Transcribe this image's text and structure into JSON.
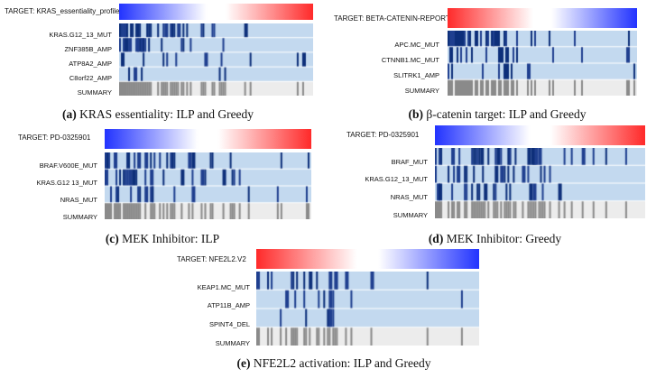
{
  "colors": {
    "blue_strong": "#1f3f8f",
    "blue_dark": "#0d2f7a",
    "blue_light": "#c3d9ef",
    "gray_dark": "#8a8a8a",
    "gray_light": "#ececec",
    "red": "#ff2a2a",
    "blue_grad": "#2233ff"
  },
  "panels": [
    {
      "id": "a",
      "target_prefix": "TARGET:",
      "target_name": "KRAS_essentiality_profile",
      "gradient": "blue-to-red",
      "rows": [
        "KRAS.G12_13_MUT",
        "ZNF385B_AMP",
        "ATP8A2_AMP",
        "C8orf22_AMP"
      ],
      "row_labels": [
        "KRAS.G12_13_MUT",
        "ZNF385B_AMP",
        "ATP8A2_AMP",
        "C8orf22_AMP"
      ],
      "summary_label": "SUMMARY",
      "caption_tag": "(a)",
      "caption_text": "KRAS essentiality: ILP and Greedy",
      "density": [
        0.45,
        0.22,
        0.18,
        0.12
      ],
      "active_fraction": 0.55,
      "seed": 11
    },
    {
      "id": "b",
      "target_prefix": "TARGET:",
      "target_name": "BETA-CATENIN-REPORTER",
      "gradient": "red-to-blue",
      "rows": [
        "APC.MC_MUT",
        "CTNNB1.MC_MUT",
        "SLITRK1_AMP"
      ],
      "row_labels": [
        "APC.MC_MUT",
        "CTNNB1.MC_MUT",
        "SLITRK1_AMP"
      ],
      "summary_label": "SUMMARY",
      "caption_tag": "(b)",
      "caption_text": "β-catenin target: ILP and Greedy",
      "density": [
        0.5,
        0.2,
        0.15
      ],
      "active_fraction": 0.45,
      "seed": 23
    },
    {
      "id": "c",
      "target_prefix": "TARGET:",
      "target_name": "PD-0325901",
      "gradient": "blue-to-red",
      "rows": [
        "BRAF.V600E_MUT",
        "KRAS.G12_13_MUT",
        "NRAS_MUT"
      ],
      "row_labels": [
        "BRAF.V600E_MUT",
        "KRAS.G12  13_MUT",
        "NRAS_MUT"
      ],
      "summary_label": "SUMMARY",
      "caption_tag": "(c)",
      "caption_text": "MEK Inhibitor: ILP",
      "density": [
        0.35,
        0.3,
        0.25
      ],
      "active_fraction": 0.7,
      "seed": 37
    },
    {
      "id": "d",
      "target_prefix": "TARGET:",
      "target_name": "PD-0325901",
      "gradient": "blue-to-red",
      "rows": [
        "BRAF_MUT",
        "KRAS.G12_13_MUT",
        "NRAS_MUT"
      ],
      "row_labels": [
        "BRAF_MUT",
        "KRAS.G12_13_MUT",
        "NRAS_MUT"
      ],
      "summary_label": "SUMMARY",
      "caption_tag": "(d)",
      "caption_text": "MEK Inhibitor: Greedy",
      "density": [
        0.4,
        0.3,
        0.22
      ],
      "active_fraction": 0.72,
      "seed": 51
    },
    {
      "id": "e",
      "target_prefix": "TARGET:",
      "target_name": "NFE2L2.V2",
      "gradient": "red-to-blue",
      "rows": [
        "KEAP1.MC_MUT",
        "ATP11B_AMP",
        "SPINT4_DEL"
      ],
      "row_labels": [
        "KEAP1.MC_MUT",
        "ATP11B_AMP",
        "SPINT4_DEL"
      ],
      "summary_label": "SUMMARY",
      "caption_tag": "(e)",
      "caption_text": "NFE2L2 activation: ILP and Greedy",
      "density": [
        0.35,
        0.12,
        0.1
      ],
      "active_fraction": 0.42,
      "seed": 71
    }
  ]
}
